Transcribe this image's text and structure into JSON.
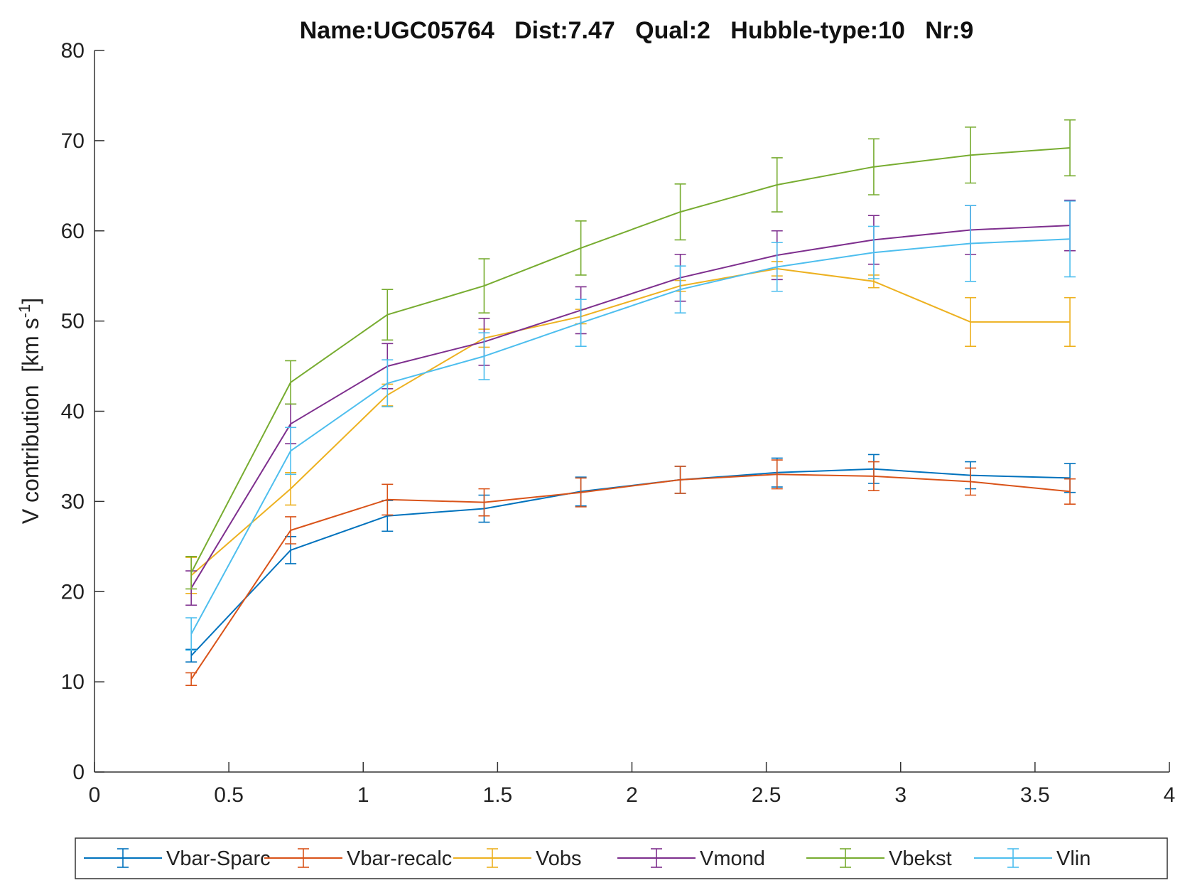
{
  "chart_data": {
    "type": "line",
    "title": "Name:UGC05764   Dist:7.47   Qual:2   Hubble-type:10   Nr:9",
    "xlabel": "",
    "ylabel": "V contribution  [km s",
    "ylabel_unit_exponent": "-1",
    "ylabel_close": "]",
    "xlim": [
      0,
      4
    ],
    "ylim": [
      0,
      80
    ],
    "x_ticks": [
      0,
      0.5,
      1,
      1.5,
      2,
      2.5,
      3,
      3.5,
      4
    ],
    "x_tick_labels": [
      "0",
      "0.5",
      "1",
      "1.5",
      "2",
      "2.5",
      "3",
      "3.5",
      "4"
    ],
    "y_ticks": [
      0,
      10,
      20,
      30,
      40,
      50,
      60,
      70,
      80
    ],
    "y_tick_labels": [
      "0",
      "10",
      "20",
      "30",
      "40",
      "50",
      "60",
      "70",
      "80"
    ],
    "grid": false,
    "legend_position": "bottom-outside",
    "x": [
      0.36,
      0.73,
      1.09,
      1.45,
      1.81,
      2.18,
      2.54,
      2.9,
      3.26,
      3.63
    ],
    "series": [
      {
        "name": "Vbar-Sparc",
        "color": "#0072BD",
        "values": [
          12.9,
          24.6,
          28.4,
          29.2,
          31.1,
          32.4,
          33.2,
          33.6,
          32.9,
          32.6
        ],
        "errors": [
          0.7,
          1.5,
          1.7,
          1.5,
          1.6,
          1.5,
          1.6,
          1.6,
          1.5,
          1.6
        ]
      },
      {
        "name": "Vbar-recalc",
        "color": "#D95319",
        "values": [
          10.3,
          26.8,
          30.2,
          29.9,
          31.0,
          32.4,
          33.0,
          32.8,
          32.2,
          31.1
        ],
        "errors": [
          0.7,
          1.5,
          1.7,
          1.5,
          1.6,
          1.5,
          1.6,
          1.6,
          1.5,
          1.4
        ]
      },
      {
        "name": "Vobs",
        "color": "#EDB120",
        "values": [
          21.8,
          31.4,
          41.8,
          48.1,
          50.5,
          53.9,
          55.8,
          54.4,
          49.9,
          49.9
        ],
        "errors": [
          2.0,
          1.8,
          1.2,
          1.0,
          0.8,
          0.6,
          0.8,
          0.7,
          2.7,
          2.7
        ]
      },
      {
        "name": "Vmond",
        "color": "#7E2F8E",
        "values": [
          20.4,
          38.6,
          45.0,
          47.7,
          51.2,
          54.8,
          57.3,
          59.0,
          60.1,
          60.6
        ],
        "errors": [
          1.9,
          2.2,
          2.5,
          2.6,
          2.6,
          2.6,
          2.7,
          2.7,
          2.7,
          2.8
        ]
      },
      {
        "name": "Vbekst",
        "color": "#77AC30",
        "values": [
          22.1,
          43.2,
          50.7,
          53.9,
          58.1,
          62.1,
          65.1,
          67.1,
          68.4,
          69.2
        ],
        "errors": [
          1.8,
          2.4,
          2.8,
          3.0,
          3.0,
          3.1,
          3.0,
          3.1,
          3.1,
          3.1
        ]
      },
      {
        "name": "Vlin",
        "color": "#4DBEEE",
        "values": [
          15.3,
          35.6,
          43.1,
          46.1,
          49.8,
          53.5,
          56.0,
          57.6,
          58.6,
          59.1
        ],
        "errors": [
          1.8,
          2.6,
          2.6,
          2.6,
          2.6,
          2.6,
          2.7,
          2.9,
          4.2,
          4.2
        ]
      }
    ]
  }
}
